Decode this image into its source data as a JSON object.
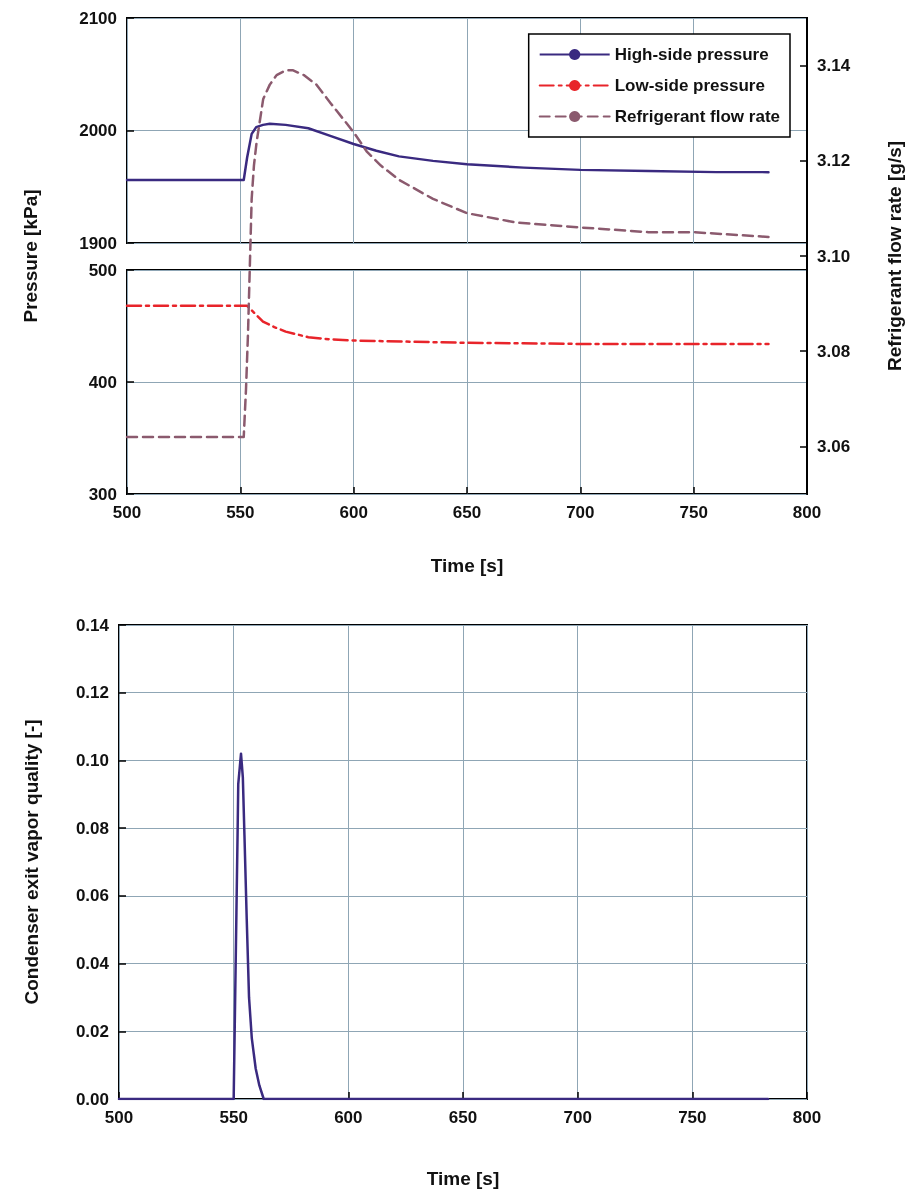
{
  "chart_data": [
    {
      "type": "line",
      "xlim": [
        500,
        800
      ],
      "xticks": [
        500,
        550,
        600,
        650,
        700,
        750,
        800
      ],
      "ylim": [
        1900,
        2100
      ],
      "yticks": [
        1900,
        2000,
        2100
      ],
      "tick_labels": "y",
      "grid": true,
      "series": [
        {
          "name": "High-side pressure",
          "color": "#3a2a80",
          "line_style": "solid",
          "x": [
            500,
            551.5,
            553,
            555,
            557,
            560,
            563,
            570,
            580,
            590,
            600,
            610,
            620,
            635,
            650,
            675,
            700,
            730,
            760,
            783
          ],
          "values": [
            1956,
            1956,
            1976,
            1997,
            2003,
            2005,
            2006,
            2005,
            2002,
            1995,
            1988,
            1982,
            1977,
            1973,
            1970,
            1967,
            1965,
            1964,
            1963,
            1963
          ]
        }
      ]
    },
    {
      "type": "line",
      "xlabel": "Time [s]",
      "ylabel": "Pressure [kPa]",
      "y2label": "Refrigerant flow rate [g/s]",
      "xlim": [
        500,
        800
      ],
      "xticks": [
        500,
        550,
        600,
        650,
        700,
        750,
        800
      ],
      "ylim": [
        300,
        500
      ],
      "yticks": [
        300,
        400,
        500
      ],
      "y2lim": [
        3.05,
        3.15
      ],
      "y2ticks": [
        3.06,
        3.08,
        {
          "value": 3.1,
          "label": "3.10"
        },
        3.12,
        3.14
      ],
      "grid": true,
      "legend": "top right",
      "series": [
        {
          "name": "Low-side pressure",
          "color": "#e8242a",
          "line_style": "dashdot",
          "x": [
            500,
            553,
            556,
            560,
            565,
            570,
            580,
            590,
            600,
            625,
            650,
            700,
            750,
            783
          ],
          "values": [
            468,
            468,
            462,
            454,
            449,
            445,
            440,
            438,
            437,
            436,
            435,
            434,
            434,
            434
          ]
        },
        {
          "name": "Refrigerant flow rate",
          "color": "#8b5a6e",
          "axis": "y2",
          "line_style": "dashed",
          "x": [
            500,
            551.5,
            552.5,
            553.4,
            554.2,
            555,
            556,
            557.2,
            560.1,
            563,
            566,
            570,
            573.3,
            578,
            583.6,
            590,
            600,
            605.7,
            612,
            620,
            635,
            650,
            672,
            700,
            730,
            750,
            783
          ],
          "values": [
            3.062,
            3.062,
            3.072,
            3.084,
            3.098,
            3.112,
            3.119,
            3.124,
            3.133,
            3.136,
            3.138,
            3.139,
            3.139,
            3.138,
            3.136,
            3.132,
            3.126,
            3.122,
            3.119,
            3.116,
            3.112,
            3.109,
            3.107,
            3.106,
            3.105,
            3.105,
            3.104
          ]
        }
      ]
    },
    {
      "type": "line",
      "xlabel": "Time [s]",
      "ylabel": "Condenser exit vapor quality [-]",
      "xlim": [
        500,
        800
      ],
      "xticks": [
        500,
        550,
        600,
        650,
        700,
        750,
        800
      ],
      "ylim": [
        0,
        0.14
      ],
      "yticks": [
        {
          "value": 0,
          "label": "0.00"
        },
        {
          "value": 0.02,
          "label": "0.02"
        },
        {
          "value": 0.04,
          "label": "0.04"
        },
        {
          "value": 0.06,
          "label": "0.06"
        },
        {
          "value": 0.08,
          "label": "0.08"
        },
        {
          "value": 0.1,
          "label": "0.10"
        },
        {
          "value": 0.12,
          "label": "0.12"
        },
        {
          "value": 0.14,
          "label": "0.14"
        }
      ],
      "grid": true,
      "series": [
        {
          "color": "#3a2a80",
          "line_style": "solid",
          "x": [
            500,
            550,
            550.7,
            551.2,
            551.7,
            552,
            553.2,
            554,
            554.7,
            555.7,
            556.7,
            557.9,
            559.6,
            561.2,
            563.1,
            783
          ],
          "values": [
            0,
            0,
            0.032,
            0.055,
            0.078,
            0.093,
            0.102,
            0.095,
            0.078,
            0.053,
            0.03,
            0.018,
            0.009,
            0.004,
            0,
            0
          ]
        }
      ]
    }
  ]
}
